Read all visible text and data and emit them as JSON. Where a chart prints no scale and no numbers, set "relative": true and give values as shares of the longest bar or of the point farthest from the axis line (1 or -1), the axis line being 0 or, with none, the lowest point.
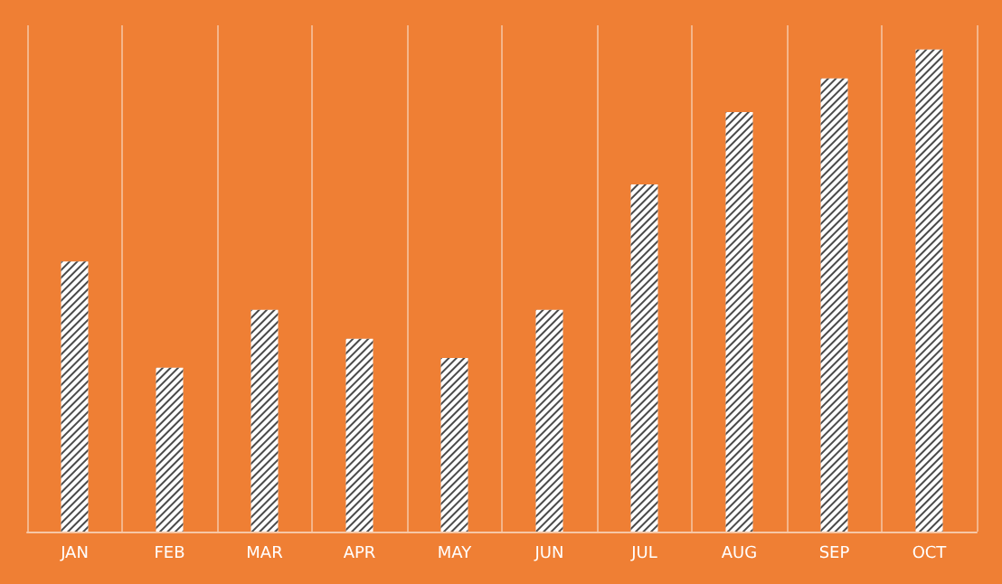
{
  "chart_data": {
    "type": "bar",
    "relative": true,
    "categories": [
      "JAN",
      "FEB",
      "MAR",
      "APR",
      "MAY",
      "JUN",
      "JUL",
      "AUG",
      "SEP",
      "OCT"
    ],
    "values": [
      0.56,
      0.34,
      0.46,
      0.4,
      0.36,
      0.46,
      0.72,
      0.87,
      0.94,
      1
    ],
    "color": "#ffffff",
    "grid": "x"
  }
}
